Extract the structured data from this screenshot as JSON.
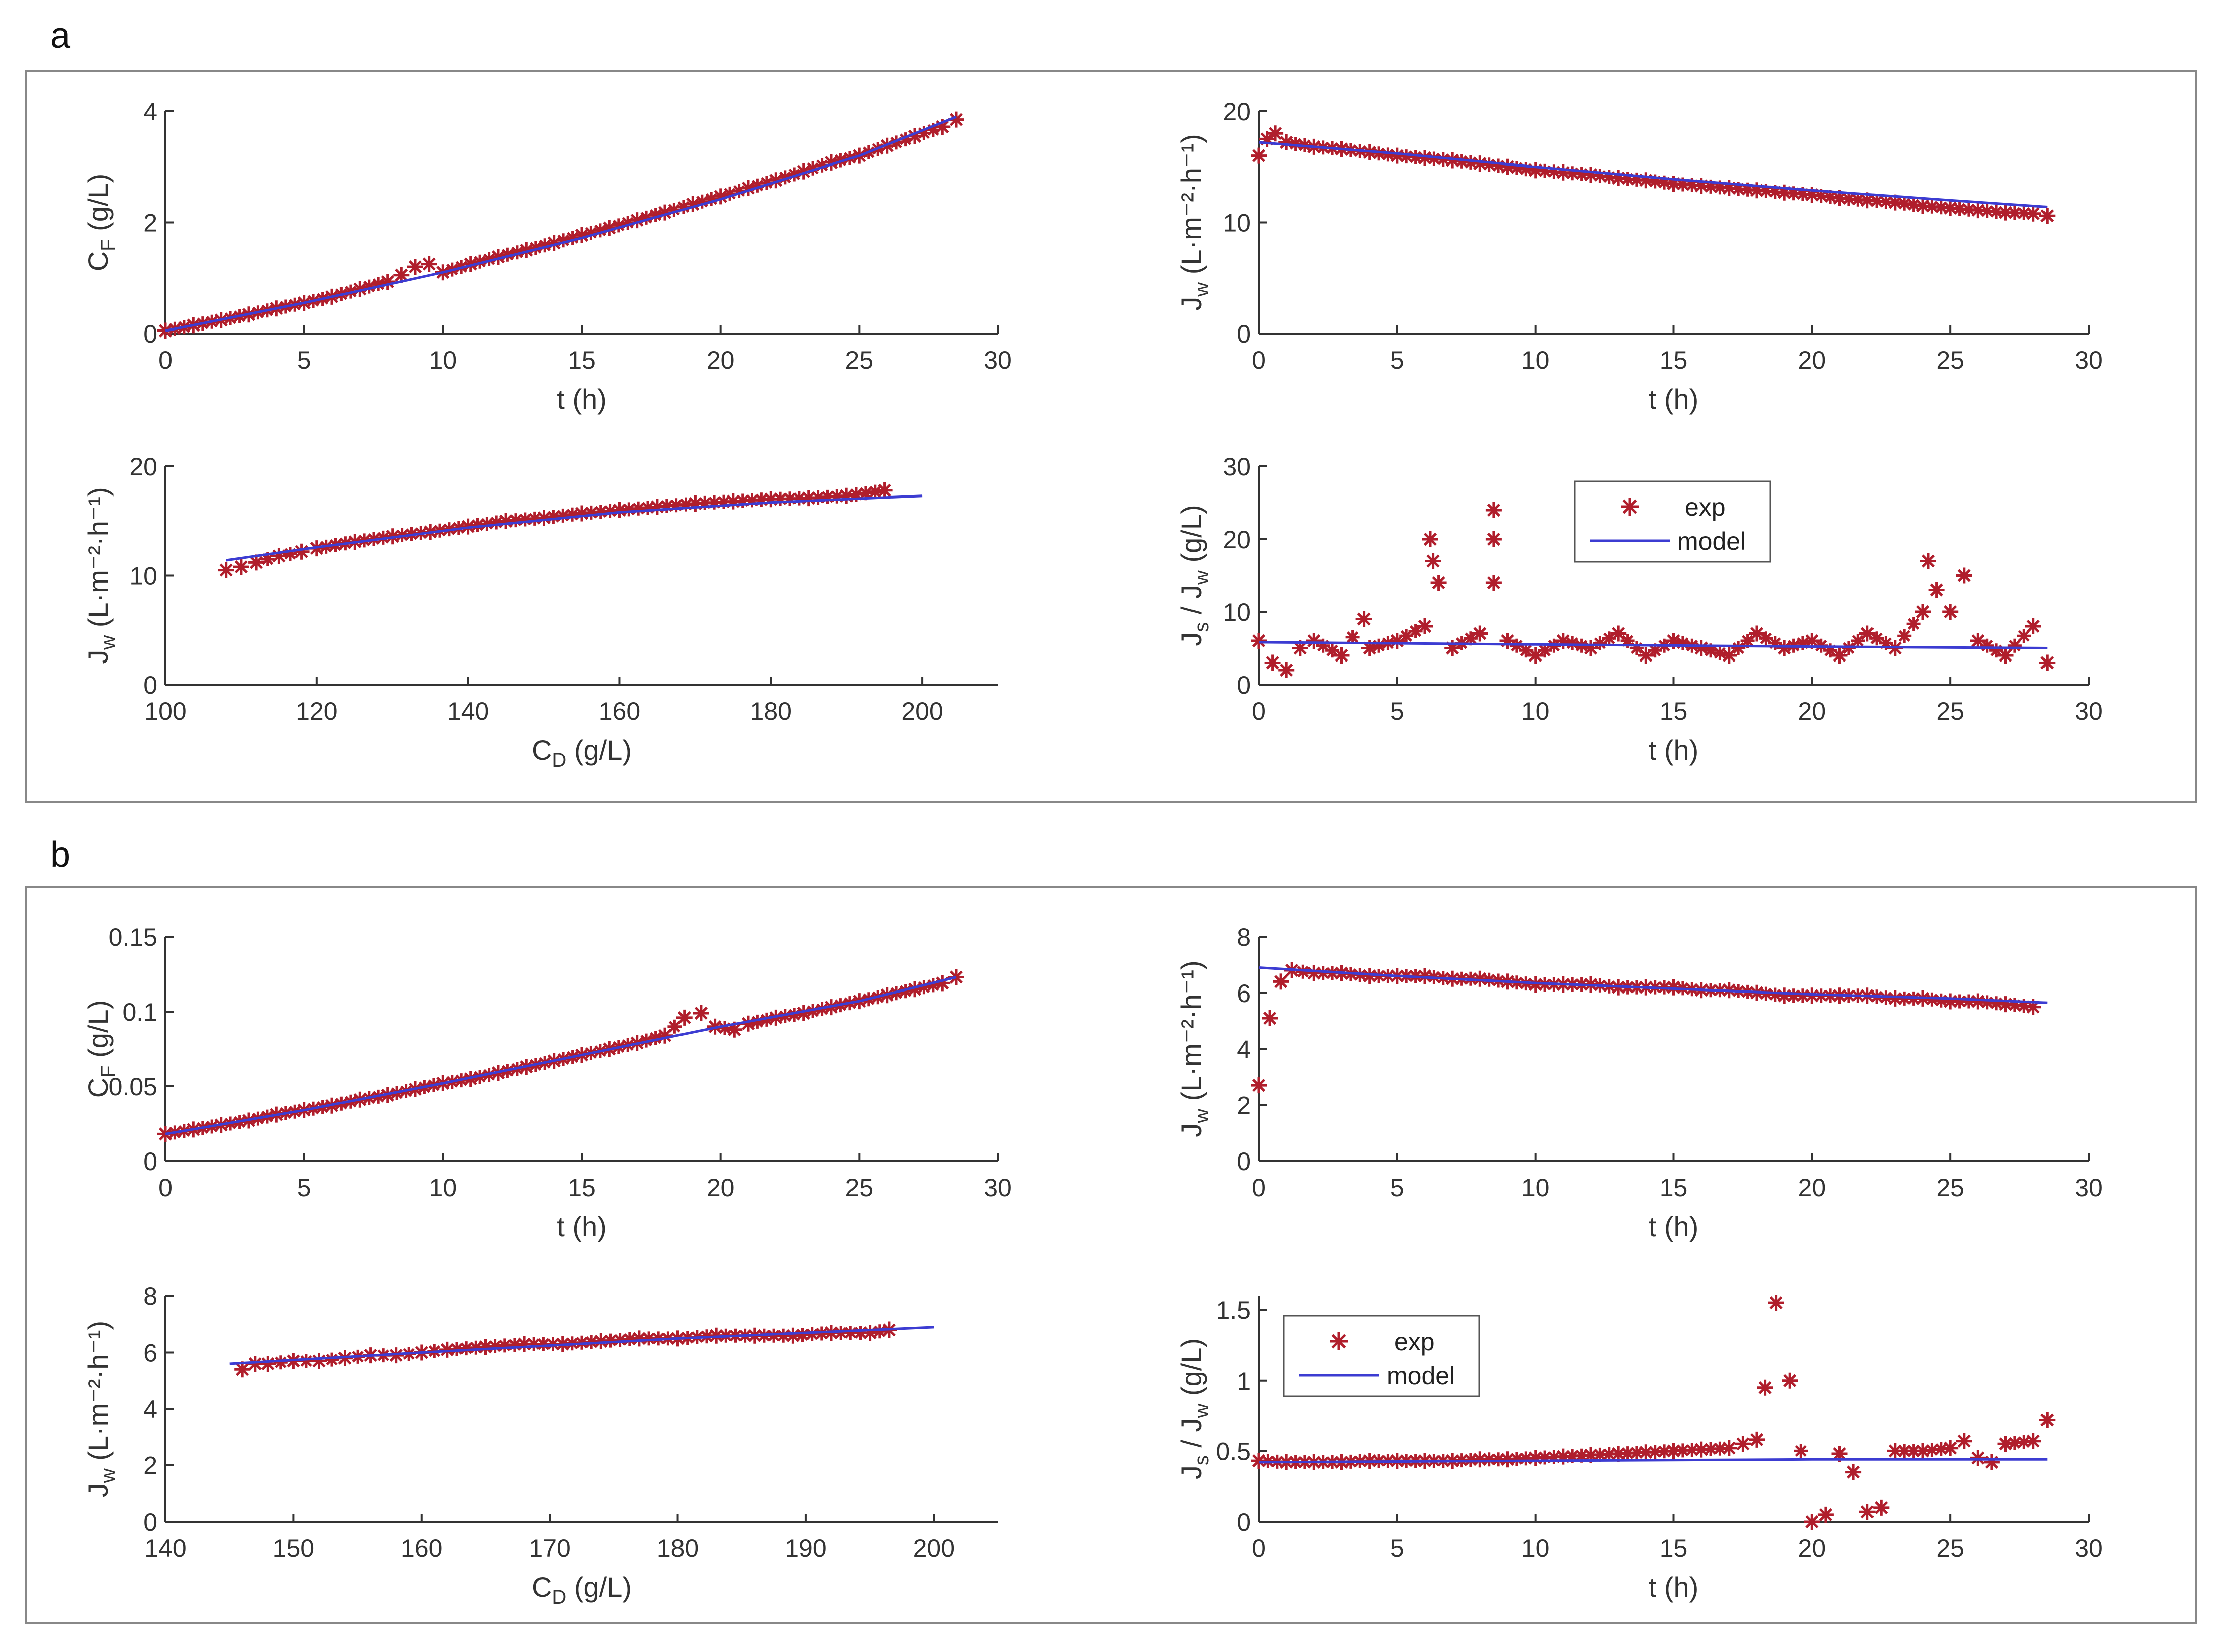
{
  "panel_labels": {
    "a": "a",
    "b": "b"
  },
  "legend": {
    "exp": "exp",
    "model": "model"
  },
  "colors": {
    "exp": "#b01e2c",
    "model": "#3c3cd2",
    "axis": "#333333",
    "frame": "#888888"
  },
  "chart_data": [
    {
      "panel": "a",
      "position": "top-left",
      "type": "scatter",
      "xlabel": "t (h)",
      "ylabel": "C",
      "ylabel_sub": "F",
      "ylabel_suffix": " (g/L)",
      "xlim": [
        0,
        30
      ],
      "ylim": [
        0,
        4
      ],
      "xticks": [
        0,
        5,
        10,
        15,
        20,
        25,
        30
      ],
      "xticklabels": [
        "0",
        "5",
        "10",
        "15",
        "20",
        "25",
        "30"
      ],
      "yticks": [
        0,
        2,
        4
      ],
      "yticklabels": [
        "0",
        "2",
        "4"
      ],
      "series": [
        {
          "name": "exp",
          "x": [
            0,
            1,
            2,
            3,
            4,
            5,
            6,
            7,
            8,
            8.5,
            9,
            9.5,
            10,
            11,
            12,
            13,
            14,
            15,
            16,
            17,
            18,
            19,
            20,
            21,
            22,
            23,
            24,
            25,
            26,
            27,
            28,
            28.5
          ],
          "y": [
            0.05,
            0.15,
            0.24,
            0.34,
            0.45,
            0.55,
            0.66,
            0.8,
            0.93,
            1.05,
            1.2,
            1.25,
            1.1,
            1.25,
            1.38,
            1.5,
            1.63,
            1.77,
            1.9,
            2.04,
            2.18,
            2.33,
            2.47,
            2.62,
            2.76,
            2.92,
            3.08,
            3.2,
            3.38,
            3.55,
            3.72,
            3.85
          ]
        },
        {
          "name": "model",
          "x": [
            0,
            5,
            10,
            15,
            20,
            25,
            28.5
          ],
          "y": [
            0.05,
            0.55,
            1.1,
            1.72,
            2.42,
            3.2,
            3.9
          ]
        }
      ]
    },
    {
      "panel": "a",
      "position": "top-right",
      "type": "scatter",
      "xlabel": "t (h)",
      "ylabel": "J",
      "ylabel_sub": "w",
      "ylabel_suffix": " (L·m⁻²·h⁻¹)",
      "xlim": [
        0,
        30
      ],
      "ylim": [
        0,
        20
      ],
      "xticks": [
        0,
        5,
        10,
        15,
        20,
        25,
        30
      ],
      "xticklabels": [
        "0",
        "5",
        "10",
        "15",
        "20",
        "25",
        "30"
      ],
      "yticks": [
        0,
        10,
        20
      ],
      "yticklabels": [
        "0",
        "10",
        "20"
      ],
      "series": [
        {
          "name": "exp",
          "x": [
            0,
            0.3,
            0.6,
            1,
            2,
            3,
            4,
            5,
            6,
            7,
            8,
            9,
            10,
            11,
            12,
            13,
            14,
            15,
            16,
            17,
            18,
            19,
            20,
            21,
            22,
            23,
            24,
            25,
            26,
            27,
            28,
            28.5
          ],
          "y": [
            16,
            17.5,
            18,
            17.2,
            16.8,
            16.6,
            16.3,
            16,
            15.8,
            15.6,
            15.3,
            15,
            14.7,
            14.5,
            14.3,
            14,
            13.8,
            13.5,
            13.3,
            13.1,
            12.9,
            12.7,
            12.5,
            12.2,
            12,
            11.8,
            11.5,
            11.3,
            11.1,
            10.9,
            10.8,
            10.6
          ]
        },
        {
          "name": "model",
          "x": [
            0,
            5,
            10,
            15,
            20,
            25,
            28.5
          ],
          "y": [
            17.2,
            16.2,
            15.0,
            13.9,
            12.9,
            12.0,
            11.4
          ]
        }
      ]
    },
    {
      "panel": "a",
      "position": "bottom-left",
      "type": "scatter",
      "xlabel": "C",
      "xlabel_sub": "D",
      "xlabel_suffix": " (g/L)",
      "ylabel": "J",
      "ylabel_sub": "w",
      "ylabel_suffix": " (L·m⁻²·h⁻¹)",
      "xlim": [
        100,
        210
      ],
      "ylim": [
        0,
        20
      ],
      "xticks": [
        100,
        120,
        140,
        160,
        180,
        200
      ],
      "xticklabels": [
        "100",
        "120",
        "140",
        "160",
        "180",
        "200"
      ],
      "yticks": [
        0,
        10,
        20
      ],
      "yticklabels": [
        "0",
        "10",
        "20"
      ],
      "series": [
        {
          "name": "exp",
          "x": [
            108,
            110,
            112,
            115,
            118,
            120,
            125,
            130,
            135,
            140,
            145,
            150,
            155,
            160,
            165,
            170,
            175,
            180,
            185,
            190,
            195
          ],
          "y": [
            10.5,
            10.8,
            11.2,
            11.8,
            12.2,
            12.5,
            13.1,
            13.6,
            14,
            14.5,
            15,
            15.3,
            15.7,
            16,
            16.3,
            16.6,
            16.8,
            17,
            17.1,
            17.3,
            17.8
          ]
        },
        {
          "name": "model",
          "x": [
            108,
            120,
            140,
            160,
            180,
            200
          ],
          "y": [
            11.4,
            12.6,
            14.4,
            15.8,
            16.7,
            17.3
          ]
        }
      ]
    },
    {
      "panel": "a",
      "position": "bottom-right",
      "type": "scatter",
      "xlabel": "t (h)",
      "ylabel": "J",
      "ylabel_sub": "s",
      "ylabel_mid": " / J",
      "ylabel_sub2": "w",
      "ylabel_suffix": " (g/L)",
      "xlim": [
        0,
        30
      ],
      "ylim": [
        0,
        30
      ],
      "xticks": [
        0,
        5,
        10,
        15,
        20,
        25,
        30
      ],
      "xticklabels": [
        "0",
        "5",
        "10",
        "15",
        "20",
        "25",
        "30"
      ],
      "yticks": [
        0,
        10,
        20,
        30
      ],
      "yticklabels": [
        "0",
        "10",
        "20",
        "30"
      ],
      "legend_position": "top-middle",
      "series": [
        {
          "name": "exp",
          "x": [
            0,
            0.5,
            1,
            1.5,
            2,
            3,
            3.8,
            4,
            5,
            6,
            6.2,
            6.3,
            6.5,
            7,
            8,
            8.5,
            8.5,
            8.5,
            9,
            10,
            11,
            12,
            13,
            14,
            15,
            16,
            17,
            18,
            19,
            20,
            21,
            22,
            23,
            24,
            24.2,
            24.5,
            25,
            25.5,
            26,
            27,
            28,
            28.5
          ],
          "y": [
            6,
            3,
            2,
            5,
            6,
            4,
            9,
            5,
            6,
            8,
            20,
            17,
            14,
            5,
            7,
            24,
            20,
            14,
            6,
            4,
            6,
            5,
            7,
            4,
            6,
            5,
            4,
            7,
            5,
            6,
            4,
            7,
            5,
            10,
            17,
            13,
            10,
            15,
            6,
            4,
            8,
            3
          ]
        },
        {
          "name": "model",
          "x": [
            0,
            10,
            20,
            28.5
          ],
          "y": [
            5.8,
            5.5,
            5.2,
            5.0
          ]
        }
      ]
    },
    {
      "panel": "b",
      "position": "top-left",
      "type": "scatter",
      "xlabel": "t (h)",
      "ylabel": "C",
      "ylabel_sub": "F",
      "ylabel_suffix": " (g/L)",
      "xlim": [
        0,
        30
      ],
      "ylim": [
        0,
        0.15
      ],
      "xticks": [
        0,
        5,
        10,
        15,
        20,
        25,
        30
      ],
      "xticklabels": [
        "0",
        "5",
        "10",
        "15",
        "20",
        "25",
        "30"
      ],
      "yticks": [
        0,
        0.05,
        0.1,
        0.15
      ],
      "yticklabels": [
        "0",
        "0.05",
        "0.1",
        "0.15"
      ],
      "series": [
        {
          "name": "exp",
          "x": [
            0,
            1,
            2,
            3,
            4,
            5,
            6,
            7,
            8,
            9,
            10,
            11,
            12,
            13,
            14,
            15,
            16,
            17,
            18,
            18.7,
            19.3,
            19.8,
            20.5,
            21,
            22,
            23,
            24,
            25,
            26,
            27,
            28,
            28.5
          ],
          "y": [
            0.018,
            0.021,
            0.024,
            0.027,
            0.031,
            0.034,
            0.037,
            0.041,
            0.044,
            0.048,
            0.052,
            0.055,
            0.059,
            0.063,
            0.067,
            0.071,
            0.075,
            0.079,
            0.084,
            0.096,
            0.099,
            0.09,
            0.088,
            0.092,
            0.096,
            0.099,
            0.103,
            0.107,
            0.111,
            0.115,
            0.119,
            0.123
          ]
        },
        {
          "name": "model",
          "x": [
            0,
            5,
            10,
            15,
            20,
            25,
            28.5
          ],
          "y": [
            0.018,
            0.034,
            0.052,
            0.071,
            0.09,
            0.107,
            0.123
          ]
        }
      ]
    },
    {
      "panel": "b",
      "position": "top-right",
      "type": "scatter",
      "xlabel": "t (h)",
      "ylabel": "J",
      "ylabel_sub": "w",
      "ylabel_suffix": " (L·m⁻²·h⁻¹)",
      "xlim": [
        0,
        30
      ],
      "ylim": [
        0,
        8
      ],
      "xticks": [
        0,
        5,
        10,
        15,
        20,
        25,
        30
      ],
      "xticklabels": [
        "0",
        "5",
        "10",
        "15",
        "20",
        "25",
        "30"
      ],
      "yticks": [
        0,
        2,
        4,
        6,
        8
      ],
      "yticklabels": [
        "0",
        "2",
        "4",
        "6",
        "8"
      ],
      "series": [
        {
          "name": "exp",
          "x": [
            0,
            0.4,
            0.8,
            1.2,
            2,
            3,
            4,
            5,
            6,
            7,
            8,
            9,
            10,
            11,
            12,
            13,
            14,
            15,
            16,
            17,
            18,
            19,
            20,
            21,
            22,
            23,
            24,
            25,
            26,
            27,
            28
          ],
          "y": [
            2.7,
            5.1,
            6.4,
            6.8,
            6.7,
            6.7,
            6.6,
            6.6,
            6.6,
            6.5,
            6.5,
            6.4,
            6.3,
            6.3,
            6.3,
            6.2,
            6.2,
            6.2,
            6.1,
            6.1,
            6.0,
            5.9,
            5.9,
            5.9,
            5.9,
            5.8,
            5.8,
            5.7,
            5.7,
            5.6,
            5.5
          ]
        },
        {
          "name": "model",
          "x": [
            0,
            5,
            10,
            15,
            20,
            25,
            28.5
          ],
          "y": [
            6.9,
            6.6,
            6.35,
            6.15,
            5.95,
            5.8,
            5.65
          ]
        }
      ]
    },
    {
      "panel": "b",
      "position": "bottom-left",
      "type": "scatter",
      "xlabel": "C",
      "xlabel_sub": "D",
      "xlabel_suffix": " (g/L)",
      "ylabel": "J",
      "ylabel_sub": "w",
      "ylabel_suffix": " (L·m⁻²·h⁻¹)",
      "xlim": [
        140,
        205
      ],
      "ylim": [
        0,
        8
      ],
      "xticks": [
        140,
        150,
        160,
        170,
        180,
        190,
        200
      ],
      "xticklabels": [
        "140",
        "150",
        "160",
        "170",
        "180",
        "190",
        "200"
      ],
      "yticks": [
        0,
        2,
        4,
        6,
        8
      ],
      "yticklabels": [
        "0",
        "2",
        "4",
        "6",
        "8"
      ],
      "series": [
        {
          "name": "exp",
          "x": [
            146,
            147,
            148,
            150,
            152,
            154,
            156,
            158,
            160,
            162,
            165,
            168,
            171,
            174,
            177,
            180,
            183,
            186,
            189,
            192,
            195,
            196.5
          ],
          "y": [
            5.4,
            5.6,
            5.6,
            5.7,
            5.7,
            5.8,
            5.9,
            5.9,
            6.0,
            6.1,
            6.2,
            6.3,
            6.3,
            6.4,
            6.5,
            6.5,
            6.6,
            6.6,
            6.6,
            6.7,
            6.7,
            6.8
          ]
        },
        {
          "name": "model",
          "x": [
            145,
            160,
            180,
            200
          ],
          "y": [
            5.6,
            6.0,
            6.5,
            6.9
          ]
        }
      ]
    },
    {
      "panel": "b",
      "position": "bottom-right",
      "type": "scatter",
      "xlabel": "t (h)",
      "ylabel": "J",
      "ylabel_sub": "s",
      "ylabel_mid": " / J",
      "ylabel_sub2": "w",
      "ylabel_suffix": " (g/L)",
      "xlim": [
        0,
        30
      ],
      "ylim": [
        0,
        1.6
      ],
      "xticks": [
        0,
        5,
        10,
        15,
        20,
        25,
        30
      ],
      "xticklabels": [
        "0",
        "5",
        "10",
        "15",
        "20",
        "25",
        "30"
      ],
      "yticks": [
        0,
        0.5,
        1,
        1.5
      ],
      "yticklabels": [
        "0",
        "0.5",
        "1",
        "1.5"
      ],
      "legend_position": "top-left",
      "series": [
        {
          "name": "exp",
          "x": [
            0,
            1,
            2,
            3,
            4,
            5,
            6,
            7,
            8,
            9,
            10,
            11,
            12,
            13,
            14,
            15,
            16,
            17,
            17.5,
            18,
            18.3,
            18.7,
            19.2,
            20,
            20.5,
            21,
            21.5,
            22,
            22.5,
            23,
            24,
            25,
            25.5,
            26,
            26.5,
            27,
            28,
            28.5
          ],
          "y": [
            0.43,
            0.42,
            0.42,
            0.42,
            0.43,
            0.43,
            0.43,
            0.43,
            0.44,
            0.44,
            0.45,
            0.46,
            0.47,
            0.48,
            0.49,
            0.5,
            0.51,
            0.52,
            0.55,
            0.58,
            0.95,
            1.55,
            1.0,
            0.0,
            0.05,
            0.48,
            0.35,
            0.07,
            0.1,
            0.5,
            0.5,
            0.52,
            0.57,
            0.45,
            0.42,
            0.55,
            0.57,
            0.72
          ]
        },
        {
          "name": "model",
          "x": [
            0,
            10,
            20,
            28.5
          ],
          "y": [
            0.42,
            0.43,
            0.44,
            0.44
          ]
        }
      ]
    }
  ]
}
